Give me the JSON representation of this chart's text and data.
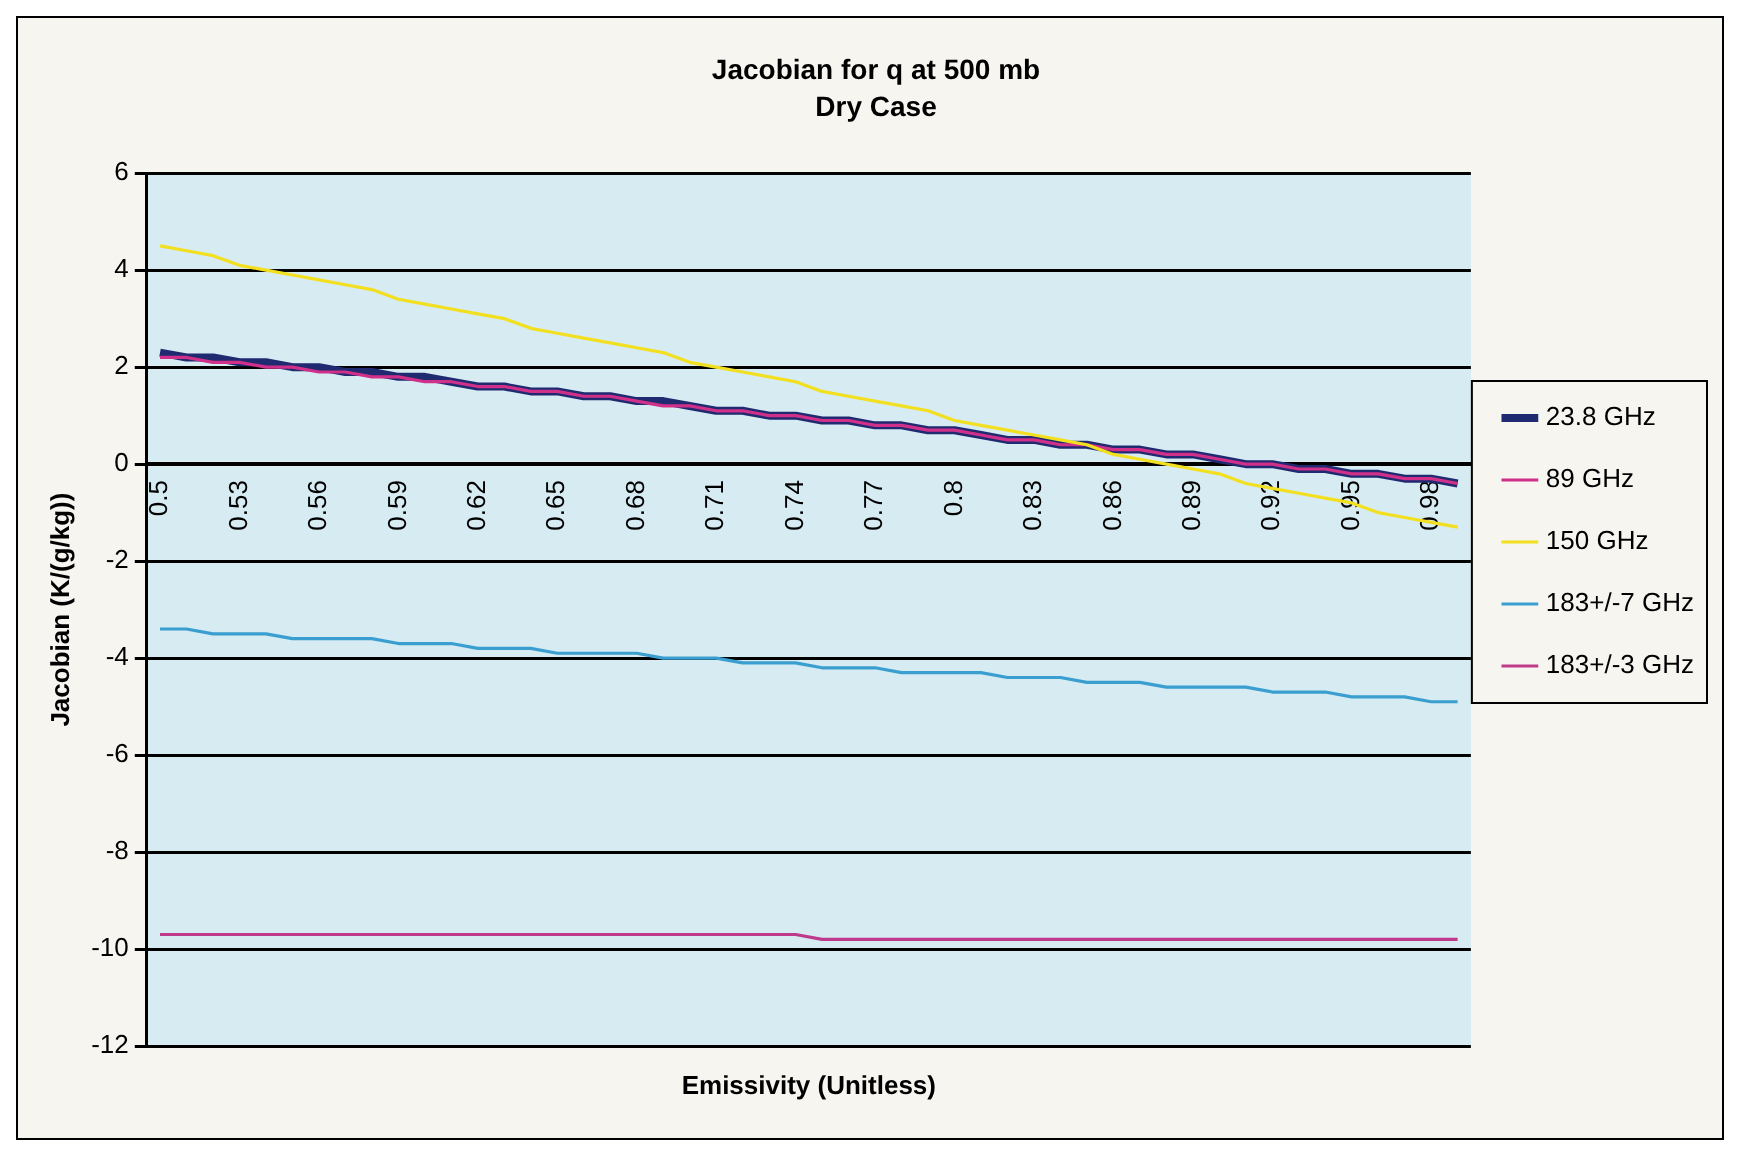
{
  "chart_data": {
    "type": "line",
    "title": "Jacobian for q at 500 mb",
    "subtitle": "Dry Case",
    "xlabel": "Emissivity (Unitless)",
    "ylabel": "Jacobian (K/(g/kg))",
    "categories": [
      "0.5",
      null,
      null,
      "0.53",
      null,
      null,
      "0.56",
      null,
      null,
      "0.59",
      null,
      null,
      "0.62",
      null,
      null,
      "0.65",
      null,
      null,
      "0.68",
      null,
      null,
      "0.71",
      null,
      null,
      "0.74",
      null,
      null,
      "0.77",
      null,
      null,
      "0.8",
      null,
      null,
      "0.83",
      null,
      null,
      "0.86",
      null,
      null,
      "0.89",
      null,
      null,
      "0.92",
      null,
      null,
      "0.95",
      null,
      null,
      "0.98",
      null
    ],
    "series": [
      {
        "name": "23.8 GHz",
        "color": "#1f2a70",
        "values": [
          2.3,
          2.2,
          2.2,
          2.1,
          2.1,
          2.0,
          2.0,
          1.9,
          1.9,
          1.8,
          1.8,
          1.7,
          1.6,
          1.6,
          1.5,
          1.5,
          1.4,
          1.4,
          1.3,
          1.3,
          1.2,
          1.1,
          1.1,
          1.0,
          1.0,
          0.9,
          0.9,
          0.8,
          0.8,
          0.7,
          0.7,
          0.6,
          0.5,
          0.5,
          0.4,
          0.4,
          0.3,
          0.3,
          0.2,
          0.2,
          0.1,
          0.0,
          0.0,
          -0.1,
          -0.1,
          -0.2,
          -0.2,
          -0.3,
          -0.3,
          -0.4
        ]
      },
      {
        "name": "89 GHz",
        "color": "#d0308a",
        "values": [
          2.2,
          2.2,
          2.1,
          2.1,
          2.0,
          2.0,
          1.9,
          1.9,
          1.8,
          1.8,
          1.7,
          1.7,
          1.6,
          1.6,
          1.5,
          1.5,
          1.4,
          1.4,
          1.3,
          1.2,
          1.2,
          1.1,
          1.1,
          1.0,
          1.0,
          0.9,
          0.9,
          0.8,
          0.8,
          0.7,
          0.7,
          0.6,
          0.5,
          0.5,
          0.4,
          0.4,
          0.3,
          0.3,
          0.2,
          0.2,
          0.1,
          0.0,
          0.0,
          -0.1,
          -0.1,
          -0.2,
          -0.2,
          -0.3,
          -0.3,
          -0.4
        ]
      },
      {
        "name": "150 GHz",
        "color": "#f2e020",
        "values": [
          4.5,
          4.4,
          4.3,
          4.1,
          4.0,
          3.9,
          3.8,
          3.7,
          3.6,
          3.4,
          3.3,
          3.2,
          3.1,
          3.0,
          2.8,
          2.7,
          2.6,
          2.5,
          2.4,
          2.3,
          2.1,
          2.0,
          1.9,
          1.8,
          1.7,
          1.5,
          1.4,
          1.3,
          1.2,
          1.1,
          0.9,
          0.8,
          0.7,
          0.6,
          0.5,
          0.4,
          0.2,
          0.1,
          0.0,
          -0.1,
          -0.2,
          -0.4,
          -0.5,
          -0.6,
          -0.7,
          -0.8,
          -1.0,
          -1.1,
          -1.2,
          -1.3
        ]
      },
      {
        "name": "183+/-7 GHz",
        "color": "#3a9fd0",
        "values": [
          -3.4,
          -3.4,
          -3.5,
          -3.5,
          -3.5,
          -3.6,
          -3.6,
          -3.6,
          -3.6,
          -3.7,
          -3.7,
          -3.7,
          -3.8,
          -3.8,
          -3.8,
          -3.9,
          -3.9,
          -3.9,
          -3.9,
          -4.0,
          -4.0,
          -4.0,
          -4.1,
          -4.1,
          -4.1,
          -4.2,
          -4.2,
          -4.2,
          -4.3,
          -4.3,
          -4.3,
          -4.3,
          -4.4,
          -4.4,
          -4.4,
          -4.5,
          -4.5,
          -4.5,
          -4.6,
          -4.6,
          -4.6,
          -4.6,
          -4.7,
          -4.7,
          -4.7,
          -4.8,
          -4.8,
          -4.8,
          -4.9,
          -4.9
        ]
      },
      {
        "name": "183+/-3 GHz",
        "color": "#c03a8c",
        "values": [
          -9.7,
          -9.7,
          -9.7,
          -9.7,
          -9.7,
          -9.7,
          -9.7,
          -9.7,
          -9.7,
          -9.7,
          -9.7,
          -9.7,
          -9.7,
          -9.7,
          -9.7,
          -9.7,
          -9.7,
          -9.7,
          -9.7,
          -9.7,
          -9.7,
          -9.7,
          -9.7,
          -9.7,
          -9.7,
          -9.8,
          -9.8,
          -9.8,
          -9.8,
          -9.8,
          -9.8,
          -9.8,
          -9.8,
          -9.8,
          -9.8,
          -9.8,
          -9.8,
          -9.8,
          -9.8,
          -9.8,
          -9.8,
          -9.8,
          -9.8,
          -9.8,
          -9.8,
          -9.8,
          -9.8,
          -9.8,
          -9.8,
          -9.8
        ]
      }
    ],
    "ylim": [
      -12,
      6
    ],
    "yticks": [
      -12,
      -10,
      -8,
      -6,
      -4,
      -2,
      0,
      2,
      4,
      6
    ],
    "grid": "y",
    "legend": "right",
    "marker": "none",
    "line_style": "solid"
  }
}
